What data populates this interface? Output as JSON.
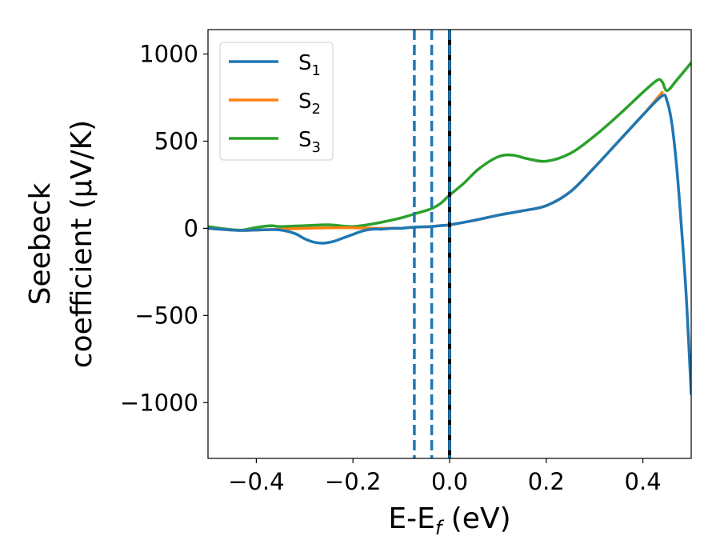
{
  "chart_data": {
    "type": "line",
    "xlabel_main": "E-E",
    "xlabel_sub": "f",
    "xlabel_unit": " (eV)",
    "ylabel_line1": "Seebeck",
    "ylabel_line2": "coefficient  (μV/K)",
    "xlim": [
      -0.5,
      0.5
    ],
    "ylim": [
      -1320,
      1140
    ],
    "xticks": [
      -0.4,
      -0.2,
      0.0,
      0.2,
      0.4
    ],
    "xtick_labels": [
      "−0.4",
      "−0.2",
      "0.0",
      "0.2",
      "0.4"
    ],
    "yticks": [
      1000,
      500,
      0,
      -500,
      -1000
    ],
    "ytick_labels": [
      "1000",
      "500",
      "0",
      "−500",
      "−1000"
    ],
    "grid": false,
    "legend_position": "top-left",
    "series": [
      {
        "name": "S",
        "sub": "1",
        "color": "#1f77b4",
        "x": [
          -0.5,
          -0.45,
          -0.42,
          -0.38,
          -0.35,
          -0.32,
          -0.3,
          -0.28,
          -0.26,
          -0.24,
          -0.22,
          -0.2,
          -0.18,
          -0.16,
          -0.14,
          -0.12,
          -0.1,
          -0.08,
          -0.06,
          -0.04,
          -0.02,
          0.0,
          0.05,
          0.1,
          0.15,
          0.2,
          0.25,
          0.3,
          0.35,
          0.4,
          0.44,
          0.45,
          0.46,
          0.47,
          0.48,
          0.49,
          0.5
        ],
        "y": [
          0,
          -10,
          -12,
          -8,
          -10,
          -30,
          -60,
          -80,
          -85,
          -75,
          -55,
          -35,
          -15,
          -5,
          -5,
          0,
          0,
          5,
          8,
          10,
          15,
          20,
          45,
          75,
          100,
          130,
          210,
          350,
          500,
          650,
          760,
          730,
          600,
          350,
          0,
          -400,
          -950
        ]
      },
      {
        "name": "S",
        "sub": "2",
        "color": "#ff7f0e",
        "x": [
          -0.5,
          -0.45,
          -0.42,
          -0.38,
          -0.35,
          -0.3,
          -0.25,
          -0.2,
          -0.15,
          -0.12,
          -0.1,
          -0.08,
          -0.06,
          -0.04,
          -0.02,
          0.0,
          0.05,
          0.1,
          0.15,
          0.2,
          0.25,
          0.3,
          0.35,
          0.4,
          0.44
        ],
        "y": [
          0,
          -10,
          -12,
          -8,
          -5,
          0,
          3,
          3,
          0,
          0,
          0,
          5,
          8,
          10,
          15,
          20,
          45,
          75,
          100,
          130,
          210,
          350,
          500,
          650,
          780
        ]
      },
      {
        "name": "S",
        "sub": "3",
        "color": "#2ca02c",
        "x": [
          -0.5,
          -0.46,
          -0.43,
          -0.4,
          -0.37,
          -0.35,
          -0.3,
          -0.25,
          -0.2,
          -0.15,
          -0.1,
          -0.07,
          -0.04,
          -0.02,
          0.0,
          0.03,
          0.06,
          0.1,
          0.13,
          0.16,
          0.2,
          0.25,
          0.3,
          0.35,
          0.4,
          0.43,
          0.44,
          0.45,
          0.47,
          0.5
        ],
        "y": [
          10,
          -5,
          -10,
          5,
          15,
          10,
          15,
          20,
          10,
          30,
          60,
          85,
          110,
          140,
          190,
          260,
          340,
          410,
          420,
          400,
          385,
          430,
          530,
          650,
          780,
          850,
          840,
          790,
          850,
          950
        ]
      }
    ],
    "vertical_lines": [
      {
        "x": -0.073,
        "color": "#1f77b4",
        "style": "dashed"
      },
      {
        "x": -0.037,
        "color": "#1f77b4",
        "style": "dashed"
      },
      {
        "x": 0.0,
        "color": "#000000",
        "style": "solid"
      },
      {
        "x": 0.0,
        "color": "#1f77b4",
        "style": "dashed"
      }
    ]
  }
}
